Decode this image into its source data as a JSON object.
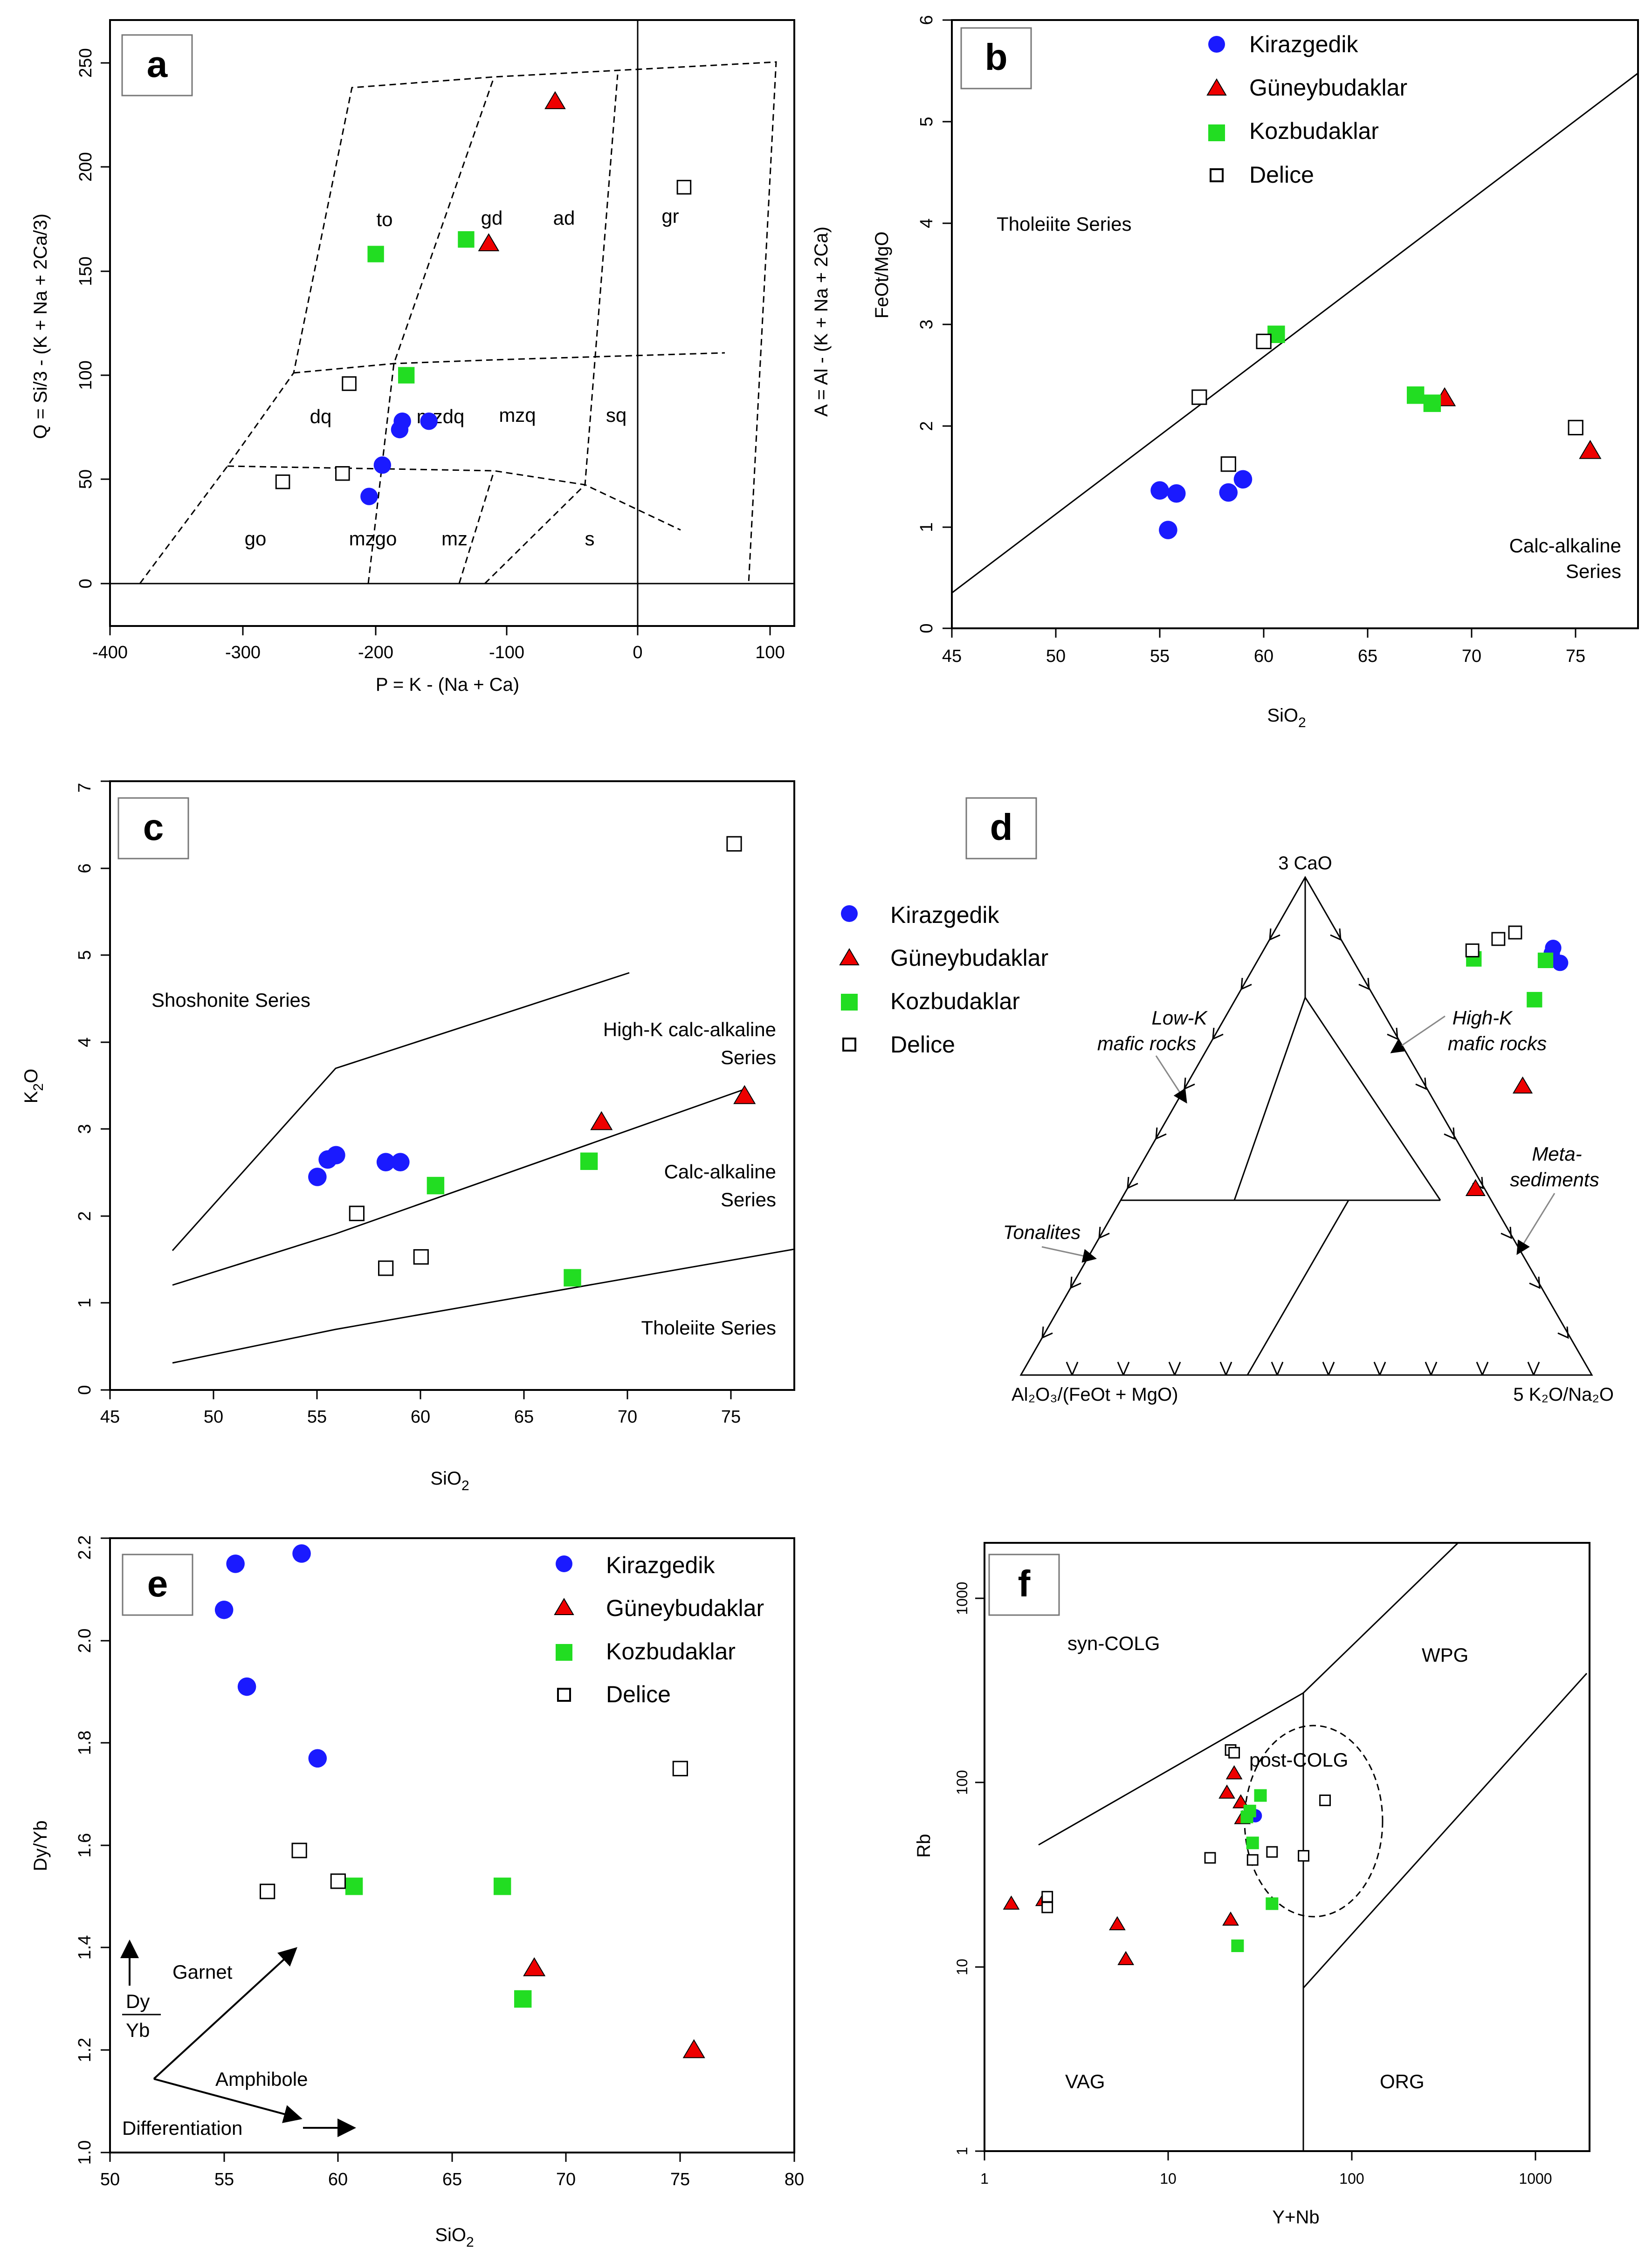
{
  "colors": {
    "Kirazgedik": "#1a1aff",
    "Güneybudaklar": "#ee0000",
    "Kozbudaklar": "#22dd22",
    "Delice": "#ffffff"
  },
  "series_order": [
    "Kirazgedik",
    "Güneybudaklar",
    "Kozbudaklar",
    "Delice"
  ],
  "panels": {
    "a": {
      "letter": "a",
      "xlabel": "P = K - (Na + Ca)",
      "ylabel": "Q = Si/3 - (K + Na + 2Ca/3)",
      "xticks": [
        "-400",
        "-300",
        "-200",
        "-100",
        "0",
        "100"
      ],
      "yticks": [
        "0",
        "50",
        "100",
        "150",
        "200",
        "250"
      ],
      "fields": [
        "to",
        "gd",
        "ad",
        "gr",
        "dq",
        "mzdq",
        "mzq",
        "sq",
        "go",
        "mzgo",
        "mz",
        "s"
      ]
    },
    "b": {
      "letter": "b",
      "xlabel_main": "SiO",
      "xlabel_sub": "2",
      "ylabel_top": "FeOt/MgO",
      "ylabel_side": "A = Al - (K + Na + 2Ca)",
      "xticks": [
        "45",
        "50",
        "55",
        "60",
        "65",
        "70",
        "75"
      ],
      "yticks": [
        "0",
        "1",
        "2",
        "3",
        "4",
        "5",
        "6"
      ],
      "field_tholeiite": "Tholeiite Series",
      "field_calc_1": "Calc-alkaline",
      "field_calc_2": "Series"
    },
    "c": {
      "letter": "c",
      "xlabel_main": "SiO",
      "xlabel_sub": "2",
      "ylabel_main": "K",
      "ylabel_sub": "2",
      "ylabel_end": "O",
      "xticks": [
        "45",
        "50",
        "55",
        "60",
        "65",
        "70",
        "75"
      ],
      "yticks": [
        "0",
        "1",
        "2",
        "3",
        "4",
        "5",
        "6",
        "7"
      ],
      "field_shoshonite": "Shoshonite Series",
      "field_highk_1": "High-K calc-alkaline",
      "field_highk_2": "Series",
      "field_calc_1": "Calc-alkaline",
      "field_calc_2": "Series",
      "field_tholeiite": "Tholeiite Series"
    },
    "d": {
      "letter": "d",
      "apex_top": "3 CaO",
      "apex_left": "Al₂O₃/(FeOt + MgO)",
      "apex_right": "5 K₂O/Na₂O",
      "field_lowk_1": "Low-K",
      "field_lowk_2": "mafic rocks",
      "field_highk_1": "High-K",
      "field_highk_2": "mafic rocks",
      "field_meta_1": "Meta-",
      "field_meta_2": "sediments",
      "field_tonalites": "Tonalites"
    },
    "e": {
      "letter": "e",
      "xlabel_main": "SiO",
      "xlabel_sub": "2",
      "ylabel": "Dy/Yb",
      "xticks": [
        "50",
        "55",
        "60",
        "65",
        "70",
        "75",
        "80"
      ],
      "yticks": [
        "1.0",
        "1.2",
        "1.4",
        "1.6",
        "1.8",
        "2.0",
        "2.2"
      ],
      "ann_garnet": "Garnet",
      "ann_dy": "Dy",
      "ann_yb": "Yb",
      "ann_amphibole": "Amphibole",
      "ann_diff": "Differentiation"
    },
    "f": {
      "letter": "f",
      "xlabel": "Y+Nb",
      "ylabel": "Rb",
      "xticks": [
        "1",
        "10",
        "100",
        "1000"
      ],
      "yticks": [
        "1",
        "10",
        "100",
        "1000"
      ],
      "field_syn": "syn-COLG",
      "field_wpg": "WPG",
      "field_post": "post-COLG",
      "field_vag": "VAG",
      "field_org": "ORG"
    }
  },
  "chart_data": [
    {
      "panel": "a",
      "type": "scatter",
      "xlabel": "P = K - (Na + Ca)",
      "ylabel": "Q = Si/3 - (K + Na + 2Ca/3)",
      "xlim": [
        -400,
        110
      ],
      "ylim": [
        -20,
        270
      ],
      "series": [
        {
          "name": "Kirazgedik",
          "x": [
            -180,
            -160,
            -182,
            -195,
            -205
          ],
          "y": [
            78,
            78,
            74,
            57,
            42
          ]
        },
        {
          "name": "Güneybudaklar",
          "x": [
            -65,
            -115
          ],
          "y": [
            231,
            163
          ]
        },
        {
          "name": "Kozbudaklar",
          "x": [
            -200,
            -132,
            -177
          ],
          "y": [
            158,
            165,
            100
          ]
        },
        {
          "name": "Delice",
          "x": [
            32,
            -220,
            -270,
            -225
          ],
          "y": [
            190,
            96,
            49,
            53
          ]
        }
      ]
    },
    {
      "panel": "b",
      "type": "scatter",
      "xlabel": "SiO2",
      "ylabel": "FeOt/MgO",
      "xlim": [
        45,
        78
      ],
      "ylim": [
        0,
        6
      ],
      "series": [
        {
          "name": "Kirazgedik",
          "x": [
            55.0,
            55.8,
            58.3,
            59.0,
            55.4
          ],
          "y": [
            1.36,
            1.33,
            1.34,
            1.47,
            0.97
          ]
        },
        {
          "name": "Güneybudaklar",
          "x": [
            68.7,
            75.7
          ],
          "y": [
            2.27,
            1.75
          ]
        },
        {
          "name": "Kozbudaklar",
          "x": [
            60.6,
            67.3,
            68.1
          ],
          "y": [
            2.9,
            2.3,
            2.22
          ]
        },
        {
          "name": "Delice",
          "x": [
            60.0,
            56.9,
            58.3,
            75.0
          ],
          "y": [
            2.83,
            2.28,
            1.62,
            1.98
          ]
        }
      ]
    },
    {
      "panel": "c",
      "type": "scatter",
      "xlabel": "SiO2",
      "ylabel": "K2O",
      "xlim": [
        45,
        78
      ],
      "ylim": [
        0,
        7
      ],
      "series": [
        {
          "name": "Kirazgedik",
          "x": [
            55.0,
            55.5,
            55.9,
            58.3,
            59.0
          ],
          "y": [
            2.45,
            2.65,
            2.7,
            2.62,
            2.62
          ]
        },
        {
          "name": "Güneybudaklar",
          "x": [
            68.7,
            75.6
          ],
          "y": [
            3.08,
            3.38
          ]
        },
        {
          "name": "Kozbudaklar",
          "x": [
            60.7,
            68.1,
            67.3
          ],
          "y": [
            2.35,
            2.63,
            1.29
          ]
        },
        {
          "name": "Delice",
          "x": [
            75.1,
            56.9,
            58.3,
            60.0
          ],
          "y": [
            6.28,
            2.03,
            1.4,
            1.53
          ]
        }
      ]
    },
    {
      "panel": "d",
      "type": "scatter",
      "subtype": "ternary",
      "vertices": [
        "3 CaO",
        "Al₂O₃/(FeOt + MgO)",
        "5 K₂O/Na₂O"
      ],
      "series": [
        {
          "name": "Kirazgedik",
          "top": [
            0.858,
            0.847,
            0.828
          ],
          "right": [
            0.505,
            0.508,
            0.532
          ]
        },
        {
          "name": "Güneybudaklar",
          "top": [
            0.58,
            0.374
          ],
          "right": [
            0.59,
            0.61
          ]
        },
        {
          "name": "Kozbudaklar",
          "top": [
            0.836,
            0.833,
            0.754
          ],
          "right": [
            0.377,
            0.504,
            0.524
          ]
        },
        {
          "name": "Delice",
          "top": [
            0.889,
            0.876,
            0.853
          ],
          "right": [
            0.423,
            0.4,
            0.366
          ]
        }
      ]
    },
    {
      "panel": "e",
      "type": "scatter",
      "xlabel": "SiO2",
      "ylabel": "Dy/Yb",
      "xlim": [
        50,
        80
      ],
      "ylim": [
        1.0,
        2.2
      ],
      "series": [
        {
          "name": "Kirazgedik",
          "x": [
            55.5,
            58.4,
            55.0,
            56.0,
            59.1
          ],
          "y": [
            2.15,
            2.17,
            2.06,
            1.91,
            1.77
          ]
        },
        {
          "name": "Güneybudaklar",
          "x": [
            68.6,
            75.6
          ],
          "y": [
            1.36,
            1.2
          ]
        },
        {
          "name": "Kozbudaklar",
          "x": [
            60.7,
            67.2,
            68.1
          ],
          "y": [
            1.52,
            1.52,
            1.3
          ]
        },
        {
          "name": "Delice",
          "x": [
            75.0,
            58.3,
            56.9,
            60.0
          ],
          "y": [
            1.75,
            1.59,
            1.51,
            1.53
          ]
        }
      ]
    },
    {
      "panel": "f",
      "type": "scatter",
      "scale": "log",
      "xlabel": "Y+Nb",
      "ylabel": "Rb",
      "xlim": [
        1,
        2000
      ],
      "ylim": [
        1,
        2000
      ],
      "series": [
        {
          "name": "Kirazgedik",
          "x": [
            28,
            30
          ],
          "y": [
            68,
            66
          ]
        },
        {
          "name": "Güneybudaklar",
          "x": [
            1.4,
            2.1,
            5.3,
            5.9,
            21,
            23,
            25,
            25.5,
            22
          ],
          "y": [
            22,
            23,
            17,
            11,
            88,
            112,
            78,
            64,
            18
          ]
        },
        {
          "name": "Kozbudaklar",
          "x": [
            28,
            32,
            29,
            37,
            24,
            27
          ],
          "y": [
            70,
            85,
            47,
            22,
            13,
            65
          ]
        },
        {
          "name": "Delice",
          "x": [
            22,
            23,
            72,
            2.2,
            2.2,
            17,
            29,
            37,
            55
          ],
          "y": [
            150,
            145,
            80,
            24,
            21,
            39,
            38,
            42,
            40
          ]
        }
      ]
    }
  ]
}
